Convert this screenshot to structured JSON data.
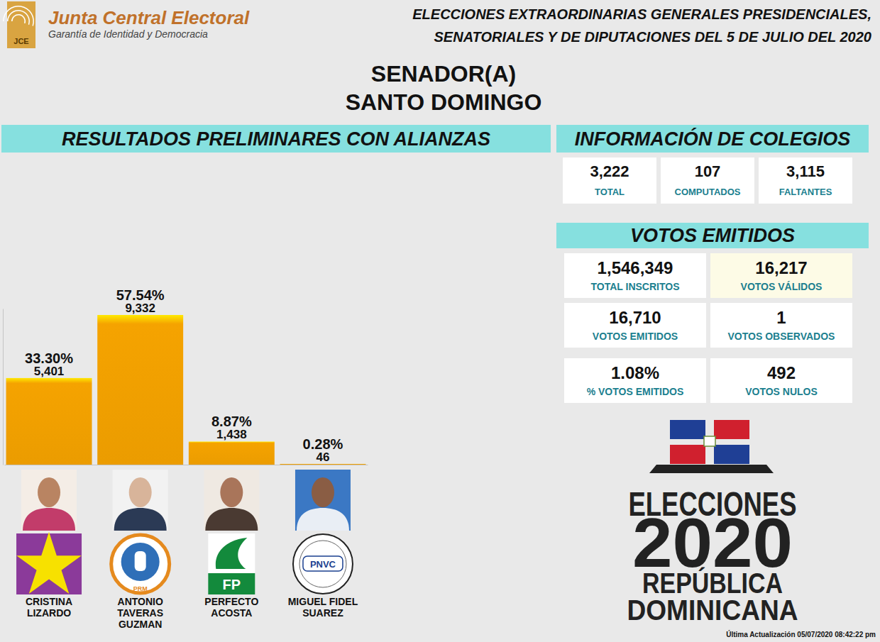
{
  "header": {
    "logo_text": "JCE",
    "organization": "Junta Central Electoral",
    "tagline": "Garantía de Identidad y Democracia",
    "title_lines": [
      "ELECCIONES EXTRAORDINARIAS GENERALES PRESIDENCIALES,",
      "SENATORIALES Y DE DIPUTACIONES DEL 5 DE JULIO DEL 2020"
    ]
  },
  "race": {
    "office": "SENADOR(A)",
    "province": "SANTO DOMINGO"
  },
  "chart_data": {
    "type": "bar",
    "title": "RESULTADOS PRELIMINARES CON ALIANZAS",
    "categories": [
      "CRISTINA LIZARDO",
      "ANTONIO TAVERAS GUZMAN",
      "PERFECTO ACOSTA",
      "MIGUEL FIDEL SUAREZ"
    ],
    "values": [
      33.3,
      57.54,
      8.87,
      0.28
    ],
    "value_labels": [
      "33.30%",
      "57.54%",
      "8.87%",
      "0.28%"
    ],
    "votes": [
      5401,
      9332,
      1438,
      46
    ],
    "vote_labels": [
      "5,401",
      "9,332",
      "1,438",
      "46"
    ],
    "parties": [
      null,
      "PRM",
      "FP",
      "PNVC"
    ],
    "color": "#f5a300",
    "ylim": [
      0,
      60
    ],
    "yticks": [],
    "grid": false,
    "data_labels": true,
    "tick_labels": false
  },
  "colegios": {
    "title": "INFORMACIÓN DE COLEGIOS",
    "cards": [
      {
        "value": "3,222",
        "label": "TOTAL"
      },
      {
        "value": "107",
        "label": "COMPUTADOS"
      },
      {
        "value": "3,115",
        "label": "FALTANTES"
      }
    ]
  },
  "votos": {
    "title": "VOTOS EMITIDOS",
    "cards": [
      {
        "value": "1,546,349",
        "label": "TOTAL INSCRITOS"
      },
      {
        "value": "16,217",
        "label": "VOTOS VÁLIDOS"
      },
      {
        "value": "16,710",
        "label": "VOTOS EMITIDOS"
      },
      {
        "value": "1",
        "label": "VOTOS OBSERVADOS"
      },
      {
        "value": "1.08%",
        "label": "% VOTOS EMITIDOS"
      },
      {
        "value": "492",
        "label": "VOTOS NULOS"
      }
    ]
  },
  "brand": {
    "lines": [
      "ELECCIONES",
      "2020",
      "REPÚBLICA",
      "DOMINICANA"
    ]
  },
  "footer": "Última Actualización 05/07/2020 08:42:22 pm"
}
